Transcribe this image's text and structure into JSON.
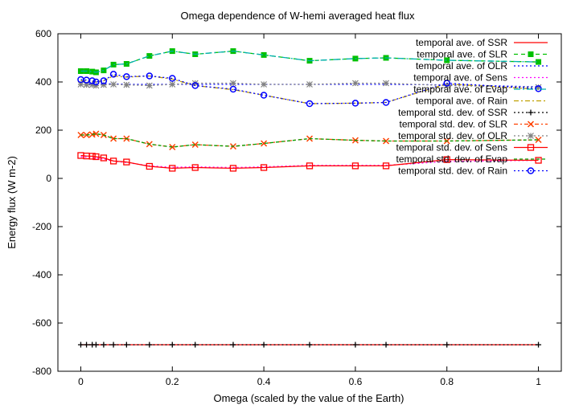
{
  "chart_data": {
    "type": "line",
    "title": "Omega dependence of W-hemi averaged heat flux",
    "xlabel": "Omega (scaled by the value of the Earth)",
    "ylabel": "Energy flux (W m-2)",
    "xlim": [
      -0.05,
      1.05
    ],
    "ylim": [
      -800,
      600
    ],
    "xticks": [
      0,
      0.2,
      0.4,
      0.6,
      0.8,
      1
    ],
    "xtick_labels": [
      "0",
      "0.2",
      "0.4",
      "0.6",
      "0.8",
      "1"
    ],
    "yticks": [
      -800,
      -600,
      -400,
      -200,
      0,
      200,
      400,
      600
    ],
    "ytick_labels": [
      "-800",
      "-600",
      "-400",
      "-200",
      "0",
      "200",
      "400",
      "600"
    ],
    "grid": false,
    "legend_position": "top-right",
    "series": [
      {
        "name": "temporal ave. of SSR",
        "color": "#ff0000",
        "marker": "none",
        "dash": "solid",
        "x": [
          0,
          0.0125,
          0.025,
          0.0333,
          0.05,
          0.0714,
          0.1,
          0.15,
          0.2,
          0.25,
          0.333,
          0.4,
          0.5,
          0.6,
          0.667,
          0.8,
          1
        ],
        "y": [
          -690,
          -690,
          -690,
          -690,
          -690,
          -690,
          -690,
          -690,
          -690,
          -690,
          -690,
          -690,
          -690,
          -690,
          -690,
          -690,
          -690
        ]
      },
      {
        "name": "temporal ave. of SLR",
        "color": "#00c000",
        "marker": "square",
        "dash": "5,4",
        "x": [
          0,
          0.0125,
          0.025,
          0.0333,
          0.05,
          0.0714,
          0.1,
          0.15,
          0.2,
          0.25,
          0.333,
          0.4,
          0.5,
          0.6,
          0.667,
          0.8,
          1
        ],
        "y": [
          445,
          445,
          443,
          440,
          448,
          472,
          475,
          508,
          528,
          515,
          528,
          512,
          488,
          497,
          500,
          490,
          483
        ]
      },
      {
        "name": "temporal ave. of OLR",
        "color": "#0000ff",
        "marker": "none",
        "dash": "2,3",
        "x": [
          0,
          0.0125,
          0.025,
          0.0333,
          0.05,
          0.0714,
          0.1,
          0.15,
          0.2,
          0.25,
          0.333,
          0.4,
          0.5,
          0.6,
          0.667,
          0.8,
          1
        ],
        "y": [
          392,
          392,
          392,
          392,
          392,
          392,
          390,
          390,
          390,
          390,
          390,
          390,
          390,
          390,
          390,
          388,
          380
        ]
      },
      {
        "name": "temporal ave. of Sens",
        "color": "#ff00ff",
        "marker": "none",
        "dash": "2,3",
        "x": [
          0,
          0.0125,
          0.025,
          0.0333,
          0.05,
          0.0714,
          0.1,
          0.15,
          0.2,
          0.25,
          0.333,
          0.4,
          0.5,
          0.6,
          0.667,
          0.8,
          1
        ],
        "y": [
          90,
          88,
          86,
          84,
          80,
          72,
          66,
          52,
          46,
          48,
          45,
          48,
          54,
          54,
          54,
          70,
          75
        ]
      },
      {
        "name": "temporal ave. of Evap",
        "color": "#00b0b0",
        "marker": "none",
        "dash": "8,3,2,3",
        "x": [
          0,
          0.0125,
          0.025,
          0.0333,
          0.05,
          0.0714,
          0.1,
          0.15,
          0.2,
          0.25,
          0.333,
          0.4,
          0.5,
          0.6,
          0.667,
          0.8,
          1
        ],
        "y": [
          445,
          445,
          443,
          440,
          448,
          472,
          475,
          508,
          528,
          515,
          528,
          512,
          488,
          497,
          500,
          490,
          483
        ]
      },
      {
        "name": "temporal ave. of Rain",
        "color": "#c0a000",
        "marker": "none",
        "dash": "6,3,2,3",
        "x": [
          0,
          0.0125,
          0.025,
          0.0333,
          0.05,
          0.0714,
          0.1,
          0.15,
          0.2,
          0.25,
          0.333,
          0.4,
          0.5,
          0.6,
          0.667,
          0.8,
          1
        ],
        "y": [
          405,
          405,
          403,
          400,
          405,
          425,
          420,
          425,
          412,
          385,
          368,
          345,
          310,
          312,
          315,
          392,
          370
        ]
      },
      {
        "name": "temporal std. dev. of SSR",
        "color": "#000000",
        "marker": "plus",
        "dash": "2,3",
        "x": [
          0,
          0.0125,
          0.025,
          0.0333,
          0.05,
          0.0714,
          0.1,
          0.15,
          0.2,
          0.25,
          0.333,
          0.4,
          0.5,
          0.6,
          0.667,
          0.8,
          1
        ],
        "y": [
          -690,
          -690,
          -690,
          -690,
          -690,
          -690,
          -690,
          -690,
          -690,
          -690,
          -690,
          -690,
          -690,
          -690,
          -690,
          -690,
          -690
        ]
      },
      {
        "name": "temporal std. dev. of SLR",
        "color": "#ff4000",
        "marker": "x",
        "dash": "5,3,2,3",
        "x": [
          0,
          0.0125,
          0.025,
          0.0333,
          0.05,
          0.0714,
          0.1,
          0.15,
          0.2,
          0.25,
          0.333,
          0.4,
          0.5,
          0.6,
          0.667,
          0.8,
          1
        ],
        "y": [
          180,
          180,
          182,
          185,
          180,
          165,
          165,
          142,
          130,
          140,
          133,
          145,
          165,
          158,
          155,
          155,
          160
        ]
      },
      {
        "name": "temporal std. dev. of OLR",
        "color": "#808080",
        "marker": "star",
        "dash": "2,3",
        "x": [
          0,
          0.0125,
          0.025,
          0.0333,
          0.05,
          0.0714,
          0.1,
          0.15,
          0.2,
          0.25,
          0.333,
          0.4,
          0.5,
          0.6,
          0.667,
          0.8,
          1
        ],
        "y": [
          390,
          388,
          388,
          385,
          388,
          390,
          388,
          385,
          390,
          395,
          395,
          390,
          390,
          395,
          395,
          385,
          378
        ]
      },
      {
        "name": "temporal std. dev. of Sens",
        "color": "#ff0000",
        "marker": "square-open",
        "dash": "solid",
        "x": [
          0,
          0.0125,
          0.025,
          0.0333,
          0.05,
          0.0714,
          0.1,
          0.15,
          0.2,
          0.25,
          0.333,
          0.4,
          0.5,
          0.6,
          0.667,
          0.8,
          1
        ],
        "y": [
          95,
          93,
          92,
          90,
          85,
          72,
          68,
          50,
          42,
          45,
          42,
          45,
          52,
          52,
          52,
          78,
          75
        ]
      },
      {
        "name": "temporal std. dev. of Evap",
        "color": "#00a000",
        "marker": "none",
        "dash": "4,3",
        "x": [
          0,
          0.0125,
          0.025,
          0.0333,
          0.05,
          0.0714,
          0.1,
          0.15,
          0.2,
          0.25,
          0.333,
          0.4,
          0.5,
          0.6,
          0.667,
          0.8,
          1
        ],
        "y": [
          180,
          180,
          182,
          185,
          180,
          165,
          165,
          142,
          130,
          140,
          133,
          145,
          165,
          158,
          155,
          155,
          160
        ]
      },
      {
        "name": "temporal std. dev. of Rain",
        "color": "#0000ff",
        "marker": "circle-open",
        "dash": "2,3",
        "x": [
          0,
          0.0125,
          0.025,
          0.0333,
          0.05,
          0.0714,
          0.1,
          0.15,
          0.2,
          0.25,
          0.333,
          0.4,
          0.5,
          0.6,
          0.667,
          0.8,
          1
        ],
        "y": [
          410,
          408,
          405,
          400,
          405,
          432,
          422,
          425,
          415,
          385,
          370,
          345,
          310,
          312,
          315,
          395,
          372
        ]
      }
    ]
  }
}
